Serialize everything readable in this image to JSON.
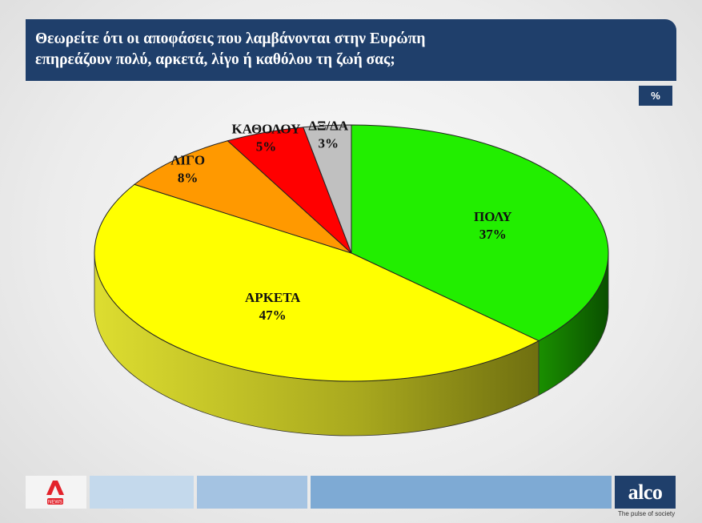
{
  "header": {
    "question_line1": "Θεωρείτε ότι οι αποφάσεις που λαμβάνονται στην Ευρώπη",
    "question_line2": "επηρεάζουν πολύ, αρκετά, λίγο ή καθόλου τη ζωή σας;",
    "unit": "%"
  },
  "chart_data": {
    "type": "pie",
    "categories": [
      "ΠΟΛΥ",
      "ΑΡΚΕΤΑ",
      "ΛΙΓΟ",
      "ΚΑΘΟΛΟΥ",
      "ΔΞ/ΔΑ"
    ],
    "values": [
      37,
      47,
      8,
      5,
      3
    ],
    "value_labels": [
      "37%",
      "47%",
      "8%",
      "5%",
      "3%"
    ],
    "colors": [
      "#22ee00",
      "#ffff00",
      "#ff9900",
      "#ff0000",
      "#c0c0c0"
    ],
    "side_colors": [
      "#0f6f00",
      "#86861a",
      "#9a5c00",
      "#8a0000",
      "#707070"
    ],
    "style": "3d-pie",
    "start": "12 o'clock",
    "direction": "clockwise"
  },
  "footer": {
    "logo_left": "ALPHA NEWS",
    "logo_left_small": "NEWS",
    "logo_right": "alco",
    "logo_right_tagline": "The pulse of society",
    "colors": [
      "#f4f4f4",
      "#c4d9ec",
      "#a4c3e2",
      "#7eaad4",
      "#1f3f6b"
    ]
  }
}
